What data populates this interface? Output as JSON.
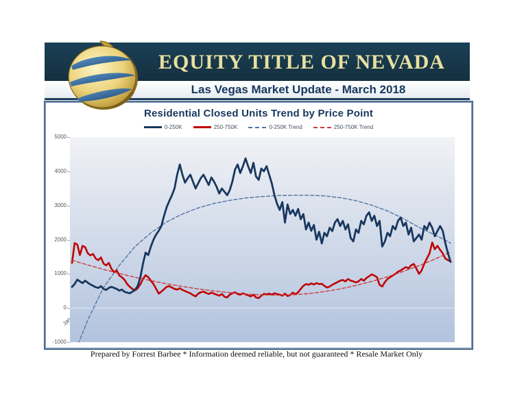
{
  "header": {
    "company": "EQUITY TITLE OF NEVADA",
    "subtitle": "Las Vegas Market Update - March 2018",
    "band_color": "#17384e",
    "company_text_color": "#e8e0a0",
    "subtitle_text_color": "#17375d",
    "logo_icon": "gold-globe-logo-icon"
  },
  "footer": {
    "text": "Prepared by Forrest Barbee * Information deemed reliable, but not guaranteed * Resale Market Only"
  },
  "chart_data": {
    "type": "line",
    "title": "Residential Closed Units Trend by Price Point",
    "xlabel": "",
    "ylabel": "",
    "ylim": [
      -1000,
      5000
    ],
    "y_ticks": [
      5000,
      4000,
      3000,
      2000,
      1000,
      0,
      -1000
    ],
    "grid": "zero-axis-line-only",
    "legend_position": "top-center",
    "plot_bg_gradient": [
      "#f1f2f5",
      "#e9ecf2",
      "#b2c3de"
    ],
    "x_start": "Jan-06",
    "x_end": "Jan-18",
    "x_interval": "monthly",
    "x_tick_labels": [
      "Jan-06",
      "Jul-06",
      "Jan-07",
      "Jul-07",
      "Jan-08",
      "Jul-08",
      "Jan-09",
      "Jul-09",
      "Jan-10",
      "Jul-10",
      "Jan-11",
      "Jul-11",
      "Jan-12",
      "Jul-12",
      "Jan-13",
      "Jul-13",
      "Jan-14",
      "Jul-14",
      "Jan-15",
      "Jul-15",
      "Jan-16",
      "Jul-16",
      "Jan-17",
      "Jul-17",
      "Jan-18"
    ],
    "series": [
      {
        "name": "0-250K",
        "color": "#17375e",
        "style": "solid",
        "width": 2.8,
        "values": [
          620,
          700,
          830,
          780,
          730,
          800,
          740,
          690,
          650,
          610,
          590,
          640,
          560,
          530,
          590,
          620,
          590,
          560,
          510,
          540,
          470,
          450,
          430,
          480,
          530,
          650,
          900,
          1300,
          1620,
          1550,
          1800,
          2000,
          2150,
          2260,
          2400,
          2700,
          2950,
          3130,
          3300,
          3500,
          3900,
          4200,
          3900,
          3670,
          3800,
          3900,
          3700,
          3500,
          3650,
          3800,
          3900,
          3750,
          3600,
          3820,
          3700,
          3550,
          3350,
          3500,
          3400,
          3300,
          3450,
          3700,
          4050,
          4200,
          3950,
          4150,
          4380,
          4150,
          3950,
          4250,
          3850,
          3750,
          4080,
          4000,
          4150,
          3900,
          3650,
          3300,
          3050,
          2870,
          3100,
          2500,
          3030,
          2750,
          2870,
          2700,
          2900,
          2600,
          2750,
          2300,
          2500,
          2260,
          2430,
          2000,
          2230,
          1890,
          2200,
          2100,
          2350,
          2250,
          2500,
          2600,
          2400,
          2550,
          2300,
          2450,
          2050,
          1950,
          2300,
          2200,
          2550,
          2450,
          2700,
          2800,
          2550,
          2700,
          2400,
          2550,
          1800,
          1950,
          2200,
          2100,
          2400,
          2300,
          2550,
          2650,
          2400,
          2500,
          2150,
          2350,
          1950,
          2050,
          2150,
          2000,
          2400,
          2300,
          2500,
          2350,
          2100,
          2250,
          2400,
          2260,
          1900,
          1600,
          1350
        ]
      },
      {
        "name": "250-750K",
        "color": "#c00000",
        "style": "solid",
        "width": 2.6,
        "values": [
          1320,
          1900,
          1860,
          1550,
          1820,
          1780,
          1600,
          1540,
          1580,
          1450,
          1400,
          1480,
          1300,
          1250,
          1320,
          1150,
          1050,
          1100,
          950,
          900,
          820,
          700,
          620,
          560,
          520,
          580,
          700,
          850,
          960,
          900,
          800,
          700,
          560,
          420,
          480,
          550,
          620,
          640,
          600,
          560,
          540,
          580,
          530,
          500,
          460,
          430,
          380,
          340,
          420,
          460,
          480,
          440,
          410,
          450,
          420,
          390,
          360,
          410,
          330,
          310,
          390,
          430,
          460,
          410,
          390,
          430,
          400,
          370,
          340,
          390,
          310,
          290,
          360,
          410,
          400,
          420,
          390,
          430,
          410,
          390,
          360,
          420,
          350,
          380,
          450,
          400,
          460,
          560,
          650,
          700,
          680,
          720,
          690,
          730,
          700,
          710,
          650,
          600,
          630,
          680,
          720,
          760,
          800,
          820,
          780,
          850,
          800,
          780,
          750,
          780,
          850,
          800,
          880,
          930,
          985,
          950,
          900,
          680,
          630,
          760,
          850,
          900,
          950,
          1000,
          1060,
          1100,
          1150,
          1200,
          1160,
          1250,
          1290,
          1150,
          1000,
          1100,
          1300,
          1450,
          1600,
          1920,
          1720,
          1820,
          1700,
          1600,
          1450,
          1400,
          1360
        ]
      },
      {
        "name": "0-250K Trend",
        "color": "#4f74a3",
        "style": "dashed",
        "width": 1.4,
        "control_points": [
          [
            0,
            -1500
          ],
          [
            6,
            -350
          ],
          [
            12,
            600
          ],
          [
            18,
            1250
          ],
          [
            24,
            1800
          ],
          [
            30,
            2200
          ],
          [
            36,
            2520
          ],
          [
            42,
            2750
          ],
          [
            48,
            2930
          ],
          [
            54,
            3060
          ],
          [
            60,
            3150
          ],
          [
            66,
            3220
          ],
          [
            72,
            3260
          ],
          [
            78,
            3290
          ],
          [
            84,
            3300
          ],
          [
            90,
            3300
          ],
          [
            96,
            3280
          ],
          [
            102,
            3230
          ],
          [
            108,
            3140
          ],
          [
            114,
            3010
          ],
          [
            120,
            2840
          ],
          [
            126,
            2620
          ],
          [
            132,
            2360
          ],
          [
            138,
            2140
          ],
          [
            144,
            1900
          ]
        ]
      },
      {
        "name": "250-750K Trend",
        "color": "#cf3a3a",
        "style": "dashed",
        "width": 1.4,
        "control_points": [
          [
            0,
            1400
          ],
          [
            6,
            1260
          ],
          [
            12,
            1130
          ],
          [
            18,
            1010
          ],
          [
            24,
            900
          ],
          [
            30,
            800
          ],
          [
            36,
            710
          ],
          [
            42,
            630
          ],
          [
            48,
            560
          ],
          [
            54,
            500
          ],
          [
            60,
            450
          ],
          [
            66,
            410
          ],
          [
            72,
            385
          ],
          [
            78,
            375
          ],
          [
            84,
            385
          ],
          [
            90,
            420
          ],
          [
            96,
            480
          ],
          [
            102,
            560
          ],
          [
            108,
            660
          ],
          [
            114,
            780
          ],
          [
            120,
            915
          ],
          [
            126,
            1070
          ],
          [
            132,
            1240
          ],
          [
            138,
            1430
          ],
          [
            144,
            1640
          ]
        ]
      }
    ]
  }
}
